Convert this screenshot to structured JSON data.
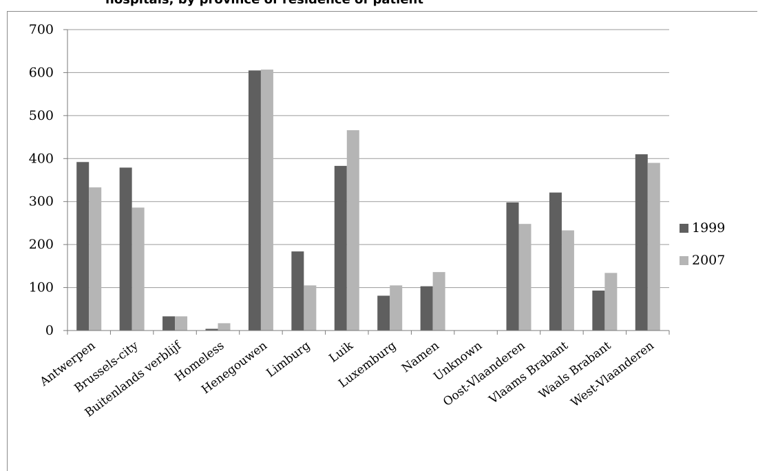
{
  "chart_data": {
    "type": "bar",
    "title": "hospitals, by province of residence of patient",
    "categories": [
      "Antwerpen",
      "Brussels-city",
      "Buitenlands verblijf",
      "Homeless",
      "Henegouwen",
      "Limburg",
      "Luik",
      "Luxemburg",
      "Namen",
      "Unknown",
      "Oost-Vlaanderen",
      "Vlaams Brabant",
      "Waals Brabant",
      "West-Vlaanderen"
    ],
    "series": [
      {
        "name": "1999",
        "color": "#5f5f5f",
        "values": [
          392,
          379,
          33,
          4,
          605,
          184,
          383,
          81,
          103,
          0,
          298,
          321,
          93,
          410
        ]
      },
      {
        "name": "2007",
        "color": "#b5b5b5",
        "values": [
          333,
          286,
          33,
          17,
          607,
          105,
          466,
          105,
          136,
          0,
          248,
          233,
          134,
          390
        ]
      }
    ],
    "ylim": [
      0,
      700
    ],
    "yticks": [
      0,
      100,
      200,
      300,
      400,
      500,
      600,
      700
    ],
    "grid": true,
    "legend": "right"
  }
}
